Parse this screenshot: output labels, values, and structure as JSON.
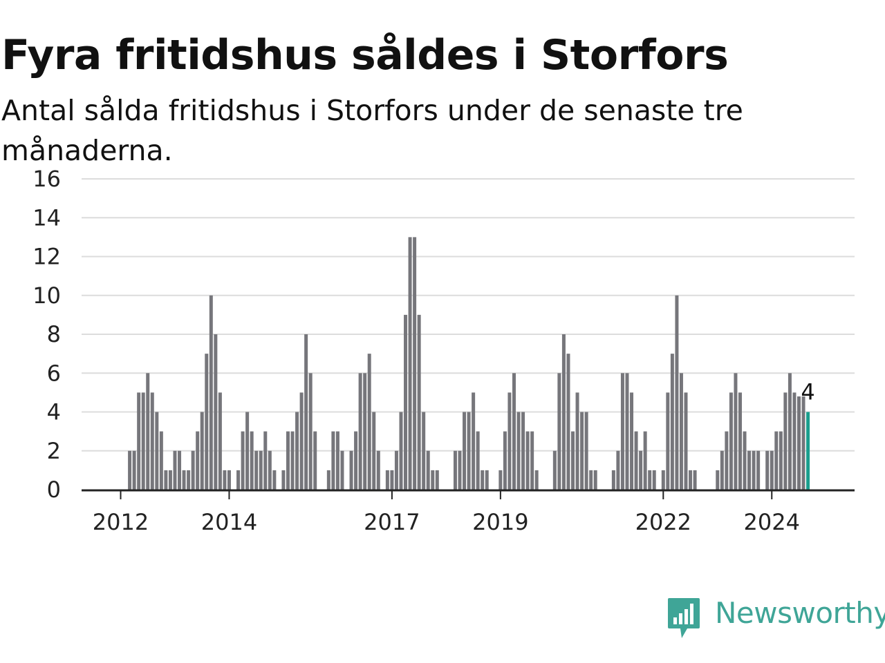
{
  "title": "Fyra fritidshus såldes i Storfors",
  "subtitle": "Antal sålda fritidshus i Storfors under de senaste tre månaderna.",
  "brand": {
    "name": "Newsworthy",
    "color": "#3fa597"
  },
  "colors": {
    "bar": "#76767b",
    "highlight": "#1b9e8e",
    "grid": "#dcdcdc",
    "axis": "#222222"
  },
  "chart_data": {
    "type": "bar",
    "title": "Fyra fritidshus såldes i Storfors",
    "subtitle": "Antal sålda fritidshus i Storfors under de senaste tre månaderna.",
    "xlabel": "",
    "ylabel": "",
    "ylim": [
      0,
      16
    ],
    "yticks": [
      "0",
      "2",
      "4",
      "6",
      "8",
      "10",
      "12",
      "14",
      "16"
    ],
    "xticks": [
      {
        "label": "2012",
        "index": 0
      },
      {
        "label": "2014",
        "index": 24
      },
      {
        "label": "2017",
        "index": 60
      },
      {
        "label": "2019",
        "index": 84
      },
      {
        "label": "2022",
        "index": 120
      },
      {
        "label": "2024",
        "index": 144
      }
    ],
    "grid": true,
    "legend": "none",
    "values": [
      0,
      0,
      2,
      2,
      5,
      5,
      6,
      5,
      4,
      3,
      1,
      1,
      2,
      2,
      1,
      1,
      2,
      3,
      4,
      7,
      10,
      8,
      5,
      1,
      1,
      0,
      1,
      3,
      4,
      3,
      2,
      2,
      3,
      2,
      1,
      0,
      1,
      3,
      3,
      4,
      5,
      8,
      6,
      3,
      0,
      0,
      1,
      3,
      3,
      2,
      0,
      2,
      3,
      6,
      6,
      7,
      4,
      2,
      0,
      1,
      1,
      2,
      4,
      9,
      13,
      13,
      9,
      4,
      2,
      1,
      1,
      0,
      0,
      0,
      2,
      2,
      4,
      4,
      5,
      3,
      1,
      1,
      0,
      0,
      1,
      3,
      5,
      6,
      4,
      4,
      3,
      3,
      1,
      0,
      0,
      0,
      2,
      6,
      8,
      7,
      3,
      5,
      4,
      4,
      1,
      1,
      0,
      0,
      0,
      1,
      2,
      6,
      6,
      5,
      3,
      2,
      3,
      1,
      1,
      0,
      1,
      5,
      7,
      10,
      6,
      5,
      1,
      1,
      0,
      0,
      0,
      0,
      1,
      2,
      3,
      5,
      6,
      5,
      3,
      2,
      2,
      2,
      0,
      2,
      2,
      3,
      3,
      5,
      6,
      5,
      4.8,
      4.8,
      4
    ],
    "last_value_label": "4"
  }
}
